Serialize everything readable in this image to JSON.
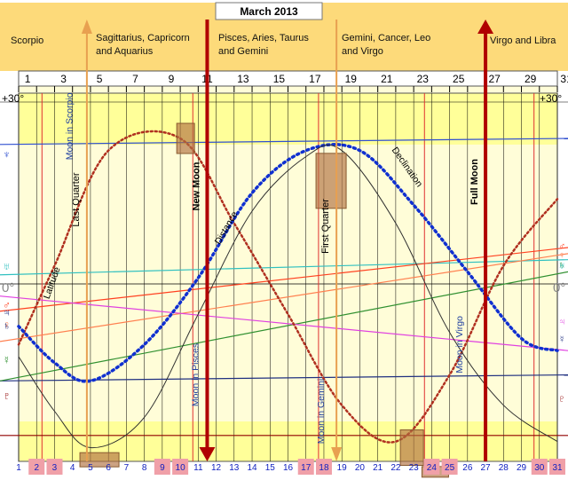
{
  "title": "March 2013",
  "colors": {
    "banner": "#FDDA7A",
    "band_light": "#FFFDD8",
    "band_yellow": "#FFFF99",
    "gridline": "#000000",
    "quarter_line": "#E8A050",
    "moon_line": "#B00000",
    "red_vline": "#E03030",
    "day_number": "#1020C0",
    "weekend_box": "#F0A0A8",
    "latitude": "#B03020",
    "distance": "#1030D0",
    "declination": "#303030",
    "neptune": "#3050D0",
    "uranus": "#30C0C0",
    "mars": "#FF4020",
    "venus": "#FF8050",
    "saturn": "#309030",
    "mercury": "#E040E0",
    "jupiter": "#203080",
    "pluto": "#900000",
    "highlight_box": "#B07040"
  },
  "zodiac": [
    {
      "label_lines": [
        "Scorpio"
      ]
    },
    {
      "label_lines": [
        "Sagittarius, Capricorn",
        "and Aquarius"
      ]
    },
    {
      "label_lines": [
        "Pisces, Aries, Taurus",
        "and Gemini"
      ]
    },
    {
      "label_lines": [
        "Gemini, Cancer, Leo",
        "and Virgo"
      ]
    },
    {
      "label_lines": [
        "Virgo and Libra"
      ]
    }
  ],
  "top_axis": {
    "labels": [
      "1",
      "3",
      "5",
      "7",
      "9",
      "11",
      "13",
      "15",
      "17",
      "19",
      "21",
      "23",
      "25",
      "27",
      "29",
      "31"
    ]
  },
  "bottom_axis": {
    "labels": [
      "1",
      "2",
      "3",
      "4",
      "5",
      "6",
      "7",
      "8",
      "9",
      "10",
      "11",
      "12",
      "13",
      "14",
      "15",
      "16",
      "17",
      "18",
      "19",
      "20",
      "21",
      "22",
      "23",
      "24",
      "25",
      "26",
      "27",
      "28",
      "29",
      "30",
      "31"
    ],
    "highlighted_days": [
      2,
      3,
      9,
      10,
      17,
      18,
      24,
      25,
      30,
      31
    ]
  },
  "y_labels": {
    "top_left": "+30°",
    "top_right": "+30°",
    "zero_left": "0°",
    "zero_right": "0°"
  },
  "left_symbols": [
    "♆",
    "♅",
    "♂",
    "♀",
    "♃",
    "♄",
    "☿",
    "♇"
  ],
  "right_symbols": [
    "♂",
    "♀",
    "♄",
    "♅",
    "♃",
    "☿",
    "♇"
  ],
  "chart_data": {
    "type": "line",
    "title": "March 2013",
    "x_range": [
      1,
      31
    ],
    "y_range": [
      -30,
      30
    ],
    "series": [
      {
        "name": "Latitude",
        "x": [
          1,
          3,
          6,
          10,
          13,
          16,
          19,
          22,
          25,
          28,
          31
        ],
        "y": [
          -10,
          3,
          22,
          24,
          10,
          -5,
          -20,
          -26,
          -15,
          3,
          14
        ]
      },
      {
        "name": "Distance",
        "x": [
          1,
          3,
          5,
          8,
          11,
          14,
          17,
          20,
          23,
          26,
          29,
          31
        ],
        "y": [
          -7,
          -13,
          -16,
          -10,
          1,
          15,
          22,
          22,
          13,
          2,
          -9,
          -11
        ]
      },
      {
        "name": "Declination",
        "x": [
          1,
          3,
          5,
          8,
          11,
          14,
          17,
          19,
          22,
          25,
          28,
          31
        ],
        "y": [
          -12,
          -21,
          -27,
          -22,
          -5,
          12,
          21,
          22,
          10,
          -8,
          -20,
          -26
        ]
      }
    ],
    "planet_lines": [
      {
        "y0": 23,
        "y1": 24
      },
      {
        "y0": 1.5,
        "y1": 4
      },
      {
        "y0": -4.5,
        "y1": 6
      },
      {
        "y0": -9.5,
        "y1": 5
      },
      {
        "y0": -16,
        "y1": -15
      },
      {
        "y0": -16,
        "y1": 2
      },
      {
        "y0": -2,
        "y1": -11
      },
      {
        "y0": -25,
        "y1": -25
      }
    ],
    "phases": [
      {
        "label": "Last Quarter",
        "day": 4.8,
        "kind": "quarter",
        "arrow": "up"
      },
      {
        "label": "New Moon",
        "day": 11.5,
        "kind": "moon",
        "arrow": "down"
      },
      {
        "label": "First Quarter",
        "day": 18.7,
        "kind": "quarter",
        "arrow": "down"
      },
      {
        "label": "Full Moon",
        "day": 27.0,
        "kind": "moon",
        "arrow": "up"
      }
    ],
    "annotations": [
      {
        "label": "Moon in Scorpio",
        "day": 4.0,
        "y": 26
      },
      {
        "label": "Latitude",
        "day": 3.0,
        "y": 0
      },
      {
        "label": "Moon in Pisces",
        "day": 11.0,
        "y": -15
      },
      {
        "label": "Distance",
        "day": 12.7,
        "y": 9
      },
      {
        "label": "Moon in Gemini",
        "day": 18.0,
        "y": -21
      },
      {
        "label": "Declination",
        "day": 22.5,
        "y": 19
      },
      {
        "label": "Moon in Virgo",
        "day": 25.7,
        "y": -10
      }
    ],
    "red_vlines": [
      2.3,
      10.7,
      17.7,
      23.6,
      29.7
    ],
    "highlight_boxes": [
      {
        "day": 10.3,
        "y": 24
      },
      {
        "day": 18.4,
        "y": 17
      },
      {
        "day": 5.5,
        "y": -29
      },
      {
        "day": 22.9,
        "y": -27
      },
      {
        "day": 24.2,
        "y": -31
      }
    ]
  }
}
